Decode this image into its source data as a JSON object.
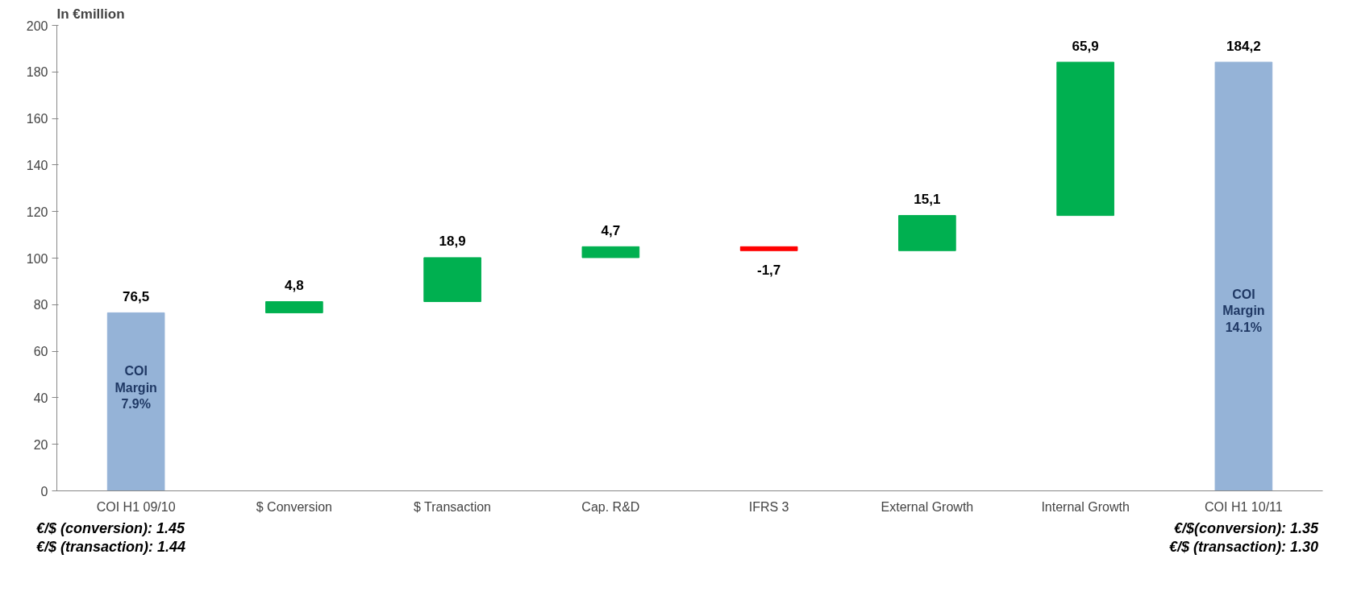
{
  "chart_data": {
    "type": "bar",
    "title": "In €million",
    "categories": [
      "COI H1 09/10",
      "$ Conversion",
      "$ Transaction",
      "Cap. R&D",
      "IFRS 3",
      "External Growth",
      "Internal Growth",
      "COI H1 10/11"
    ],
    "values": [
      76.5,
      4.8,
      18.9,
      4.7,
      -1.7,
      15.1,
      65.9,
      184.2
    ],
    "base": [
      0,
      76.5,
      81.3,
      100.2,
      104.9,
      103.2,
      118.3,
      0
    ],
    "colors": [
      "#95b3d7",
      "#00b050",
      "#00b050",
      "#00b050",
      "#ff0000",
      "#00b050",
      "#00b050",
      "#95b3d7"
    ],
    "value_labels": [
      "76,5",
      "4,8",
      "18,9",
      "4,7",
      "-1,7",
      "15,1",
      "65,9",
      "184,2"
    ],
    "ylim": [
      0,
      200
    ],
    "yticks": [
      0,
      20,
      40,
      60,
      80,
      100,
      120,
      140,
      160,
      180,
      200
    ],
    "grid": false,
    "annotations": [
      "COI\nMargin\n7.9%",
      "COI\nMargin\n14.1%",
      "€/$ (conversion): 1.45",
      "€/$ (transaction): 1.44",
      "€/$(conversion): 1.35",
      "€/$ (transaction): 1.30"
    ]
  }
}
